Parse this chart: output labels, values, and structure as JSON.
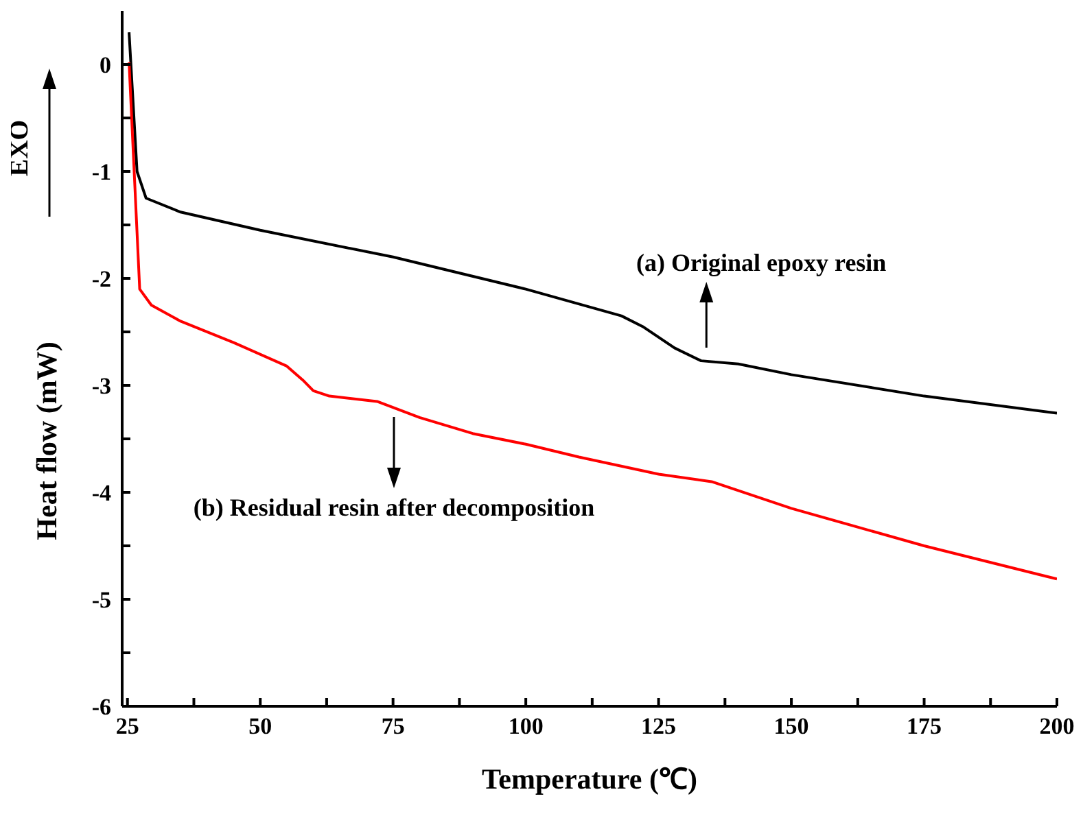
{
  "chart_data": {
    "type": "line",
    "xlabel": "Temperature (℃)",
    "ylabel": "Heat flow (mW)",
    "xlim": [
      24,
      200
    ],
    "xticks": [
      25,
      {
        "value": 37.5,
        "label": null
      },
      50,
      {
        "value": 62.5,
        "label": null
      },
      75,
      {
        "value": 87.5,
        "label": null
      },
      100,
      {
        "value": 112.5,
        "label": null
      },
      125,
      {
        "value": 137.5,
        "label": null
      },
      150,
      {
        "value": 162.5,
        "label": null
      },
      175,
      {
        "value": 187.5,
        "label": null
      },
      200
    ],
    "ylim": [
      -6,
      0.5
    ],
    "yticks": [
      -6,
      {
        "value": -5.5,
        "label": null
      },
      -5,
      {
        "value": -4.5,
        "label": null
      },
      -4,
      {
        "value": -3.5,
        "label": null
      },
      -3,
      {
        "value": -2.5,
        "label": null
      },
      -2,
      {
        "value": -1.5,
        "label": null
      },
      -1,
      {
        "value": -0.5,
        "label": null
      },
      0
    ],
    "marker": "none",
    "line_style": "solid",
    "series": [
      {
        "color": "#000000",
        "x": [
          25.3,
          26.8,
          28.5,
          35,
          50,
          75,
          100,
          118,
          122,
          128,
          133,
          140,
          150,
          175,
          200
        ],
        "values": [
          0.3,
          -1.0,
          -1.25,
          -1.38,
          -1.55,
          -1.8,
          -2.1,
          -2.35,
          -2.45,
          -2.65,
          -2.77,
          -2.8,
          -2.9,
          -3.1,
          -3.26
        ]
      },
      {
        "color": "#ff0000",
        "x": [
          25.3,
          27.3,
          29.5,
          35,
          45,
          55,
          58,
          60,
          63,
          72,
          80,
          90,
          100,
          110,
          125,
          135,
          150,
          175,
          200
        ],
        "values": [
          0.02,
          -2.1,
          -2.25,
          -2.4,
          -2.6,
          -2.82,
          -2.95,
          -3.05,
          -3.1,
          -3.15,
          -3.3,
          -3.45,
          -3.55,
          -3.67,
          -3.83,
          -3.9,
          -4.15,
          -4.5,
          -4.81
        ]
      }
    ],
    "annotations": [
      {
        "text": "(a) Original epoxy resin",
        "x": 134,
        "y": -2.75
      },
      "(b) Residual resin after decomposition",
      "EXO"
    ]
  }
}
